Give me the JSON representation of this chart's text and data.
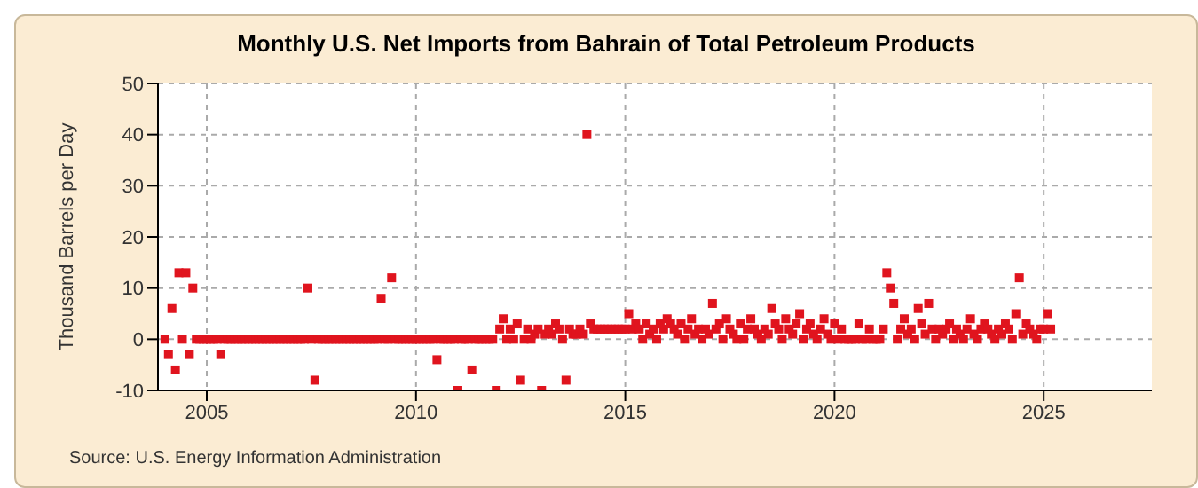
{
  "chart_data": {
    "type": "scatter",
    "title": "Monthly U.S. Net Imports from Bahrain of Total Petroleum Products",
    "ylabel": "Thousand Barrels per Day",
    "annotations": [
      "Source: U.S. Energy Information Administration"
    ],
    "x": [
      "2004-01",
      "2004-02",
      "2004-03",
      "2004-04",
      "2004-05",
      "2004-06",
      "2004-07",
      "2004-08",
      "2004-09",
      "2004-10",
      "2004-11",
      "2004-12",
      "2005-01",
      "2005-02",
      "2005-03",
      "2005-04",
      "2005-05",
      "2005-06",
      "2005-07",
      "2005-08",
      "2005-09",
      "2005-10",
      "2005-11",
      "2005-12",
      "2006-01",
      "2006-02",
      "2006-03",
      "2006-04",
      "2006-05",
      "2006-06",
      "2006-07",
      "2006-08",
      "2006-09",
      "2006-10",
      "2006-11",
      "2006-12",
      "2007-01",
      "2007-02",
      "2007-03",
      "2007-04",
      "2007-05",
      "2007-06",
      "2007-07",
      "2007-08",
      "2007-09",
      "2007-10",
      "2007-11",
      "2007-12",
      "2008-01",
      "2008-02",
      "2008-03",
      "2008-04",
      "2008-05",
      "2008-06",
      "2008-07",
      "2008-08",
      "2008-09",
      "2008-10",
      "2008-11",
      "2008-12",
      "2009-01",
      "2009-02",
      "2009-03",
      "2009-04",
      "2009-05",
      "2009-06",
      "2009-07",
      "2009-08",
      "2009-09",
      "2009-10",
      "2009-11",
      "2009-12",
      "2010-01",
      "2010-02",
      "2010-03",
      "2010-04",
      "2010-05",
      "2010-06",
      "2010-07",
      "2010-08",
      "2010-09",
      "2010-10",
      "2010-11",
      "2010-12",
      "2011-01",
      "2011-02",
      "2011-03",
      "2011-04",
      "2011-05",
      "2011-06",
      "2011-07",
      "2011-08",
      "2011-09",
      "2011-10",
      "2011-11",
      "2011-12",
      "2012-01",
      "2012-02",
      "2012-03",
      "2012-04",
      "2012-05",
      "2012-06",
      "2012-07",
      "2012-08",
      "2012-09",
      "2012-10",
      "2012-11",
      "2012-12",
      "2013-01",
      "2013-02",
      "2013-03",
      "2013-04",
      "2013-05",
      "2013-06",
      "2013-07",
      "2013-08",
      "2013-09",
      "2013-10",
      "2013-11",
      "2013-12",
      "2014-01",
      "2014-02",
      "2014-03",
      "2014-04",
      "2014-05",
      "2014-06",
      "2014-07",
      "2014-08",
      "2014-09",
      "2014-10",
      "2014-11",
      "2014-12",
      "2015-01",
      "2015-02",
      "2015-03",
      "2015-04",
      "2015-05",
      "2015-06",
      "2015-07",
      "2015-08",
      "2015-09",
      "2015-10",
      "2015-11",
      "2015-12",
      "2016-01",
      "2016-02",
      "2016-03",
      "2016-04",
      "2016-05",
      "2016-06",
      "2016-07",
      "2016-08",
      "2016-09",
      "2016-10",
      "2016-11",
      "2016-12",
      "2017-01",
      "2017-02",
      "2017-03",
      "2017-04",
      "2017-05",
      "2017-06",
      "2017-07",
      "2017-08",
      "2017-09",
      "2017-10",
      "2017-11",
      "2017-12",
      "2018-01",
      "2018-02",
      "2018-03",
      "2018-04",
      "2018-05",
      "2018-06",
      "2018-07",
      "2018-08",
      "2018-09",
      "2018-10",
      "2018-11",
      "2018-12",
      "2019-01",
      "2019-02",
      "2019-03",
      "2019-04",
      "2019-05",
      "2019-06",
      "2019-07",
      "2019-08",
      "2019-09",
      "2019-10",
      "2019-11",
      "2019-12",
      "2020-01",
      "2020-02",
      "2020-03",
      "2020-04",
      "2020-05",
      "2020-06",
      "2020-07",
      "2020-08",
      "2020-09",
      "2020-10",
      "2020-11",
      "2020-12",
      "2021-01",
      "2021-02",
      "2021-03",
      "2021-04",
      "2021-05",
      "2021-06",
      "2021-07",
      "2021-08",
      "2021-09",
      "2021-10",
      "2021-11",
      "2021-12",
      "2022-01",
      "2022-02",
      "2022-03",
      "2022-04",
      "2022-05",
      "2022-06",
      "2022-07",
      "2022-08",
      "2022-09",
      "2022-10",
      "2022-11",
      "2022-12",
      "2023-01",
      "2023-02",
      "2023-03",
      "2023-04",
      "2023-05",
      "2023-06",
      "2023-07",
      "2023-08",
      "2023-09",
      "2023-10",
      "2023-11",
      "2023-12",
      "2024-01",
      "2024-02",
      "2024-03",
      "2024-04",
      "2024-05",
      "2024-06",
      "2024-07",
      "2024-08",
      "2024-09",
      "2024-10",
      "2024-11",
      "2024-12",
      "2025-01",
      "2025-02",
      "2025-03"
    ],
    "values": [
      0,
      -3,
      6,
      -6,
      13,
      0,
      13,
      -3,
      10,
      0,
      0,
      0,
      0,
      0,
      0,
      0,
      -3,
      0,
      0,
      0,
      0,
      0,
      0,
      0,
      0,
      0,
      0,
      0,
      0,
      0,
      0,
      0,
      0,
      0,
      0,
      0,
      0,
      0,
      0,
      0,
      0,
      10,
      0,
      -8,
      0,
      0,
      0,
      0,
      0,
      0,
      0,
      0,
      0,
      0,
      0,
      0,
      0,
      0,
      0,
      0,
      0,
      0,
      8,
      0,
      0,
      12,
      0,
      0,
      0,
      0,
      0,
      0,
      0,
      0,
      0,
      0,
      0,
      0,
      -4,
      0,
      0,
      0,
      0,
      0,
      -10,
      0,
      0,
      0,
      -6,
      0,
      0,
      0,
      0,
      0,
      0,
      -10,
      2,
      4,
      0,
      2,
      0,
      3,
      -8,
      0,
      2,
      0,
      1,
      2,
      -10,
      1,
      2,
      1,
      3,
      2,
      0,
      -8,
      2,
      1,
      1,
      2,
      1,
      40,
      3,
      2,
      2,
      2,
      2,
      2,
      2,
      2,
      2,
      2,
      2,
      5,
      2,
      3,
      2,
      0,
      3,
      1,
      2,
      0,
      3,
      2,
      4,
      3,
      2,
      1,
      3,
      0,
      2,
      4,
      1,
      2,
      0,
      2,
      1,
      7,
      2,
      3,
      0,
      4,
      2,
      1,
      0,
      3,
      0,
      2,
      4,
      2,
      1,
      0,
      2,
      1,
      6,
      3,
      2,
      0,
      4,
      2,
      1,
      3,
      5,
      0,
      2,
      3,
      1,
      0,
      2,
      4,
      1,
      0,
      3,
      0,
      2,
      0,
      0,
      0,
      0,
      3,
      0,
      0,
      2,
      0,
      0,
      0,
      2,
      13,
      10,
      7,
      0,
      2,
      4,
      1,
      2,
      0,
      6,
      3,
      1,
      7,
      2,
      0,
      2,
      1,
      2,
      3,
      0,
      2,
      1,
      0,
      2,
      4,
      1,
      0,
      2,
      3,
      2,
      1,
      0,
      2,
      1,
      3,
      2,
      0,
      5,
      12,
      1,
      3,
      2,
      1,
      0,
      2,
      2,
      5,
      2
    ],
    "color": "#e0141e",
    "marker": "square",
    "grid": true,
    "xlim": [
      "2003-11",
      "2027-08"
    ],
    "xticks": [
      "2005",
      "2010",
      "2015",
      "2020",
      "2025"
    ],
    "ylim": [
      -10,
      50
    ],
    "yticks": [
      -10,
      0,
      10,
      20,
      30,
      40,
      50
    ]
  }
}
